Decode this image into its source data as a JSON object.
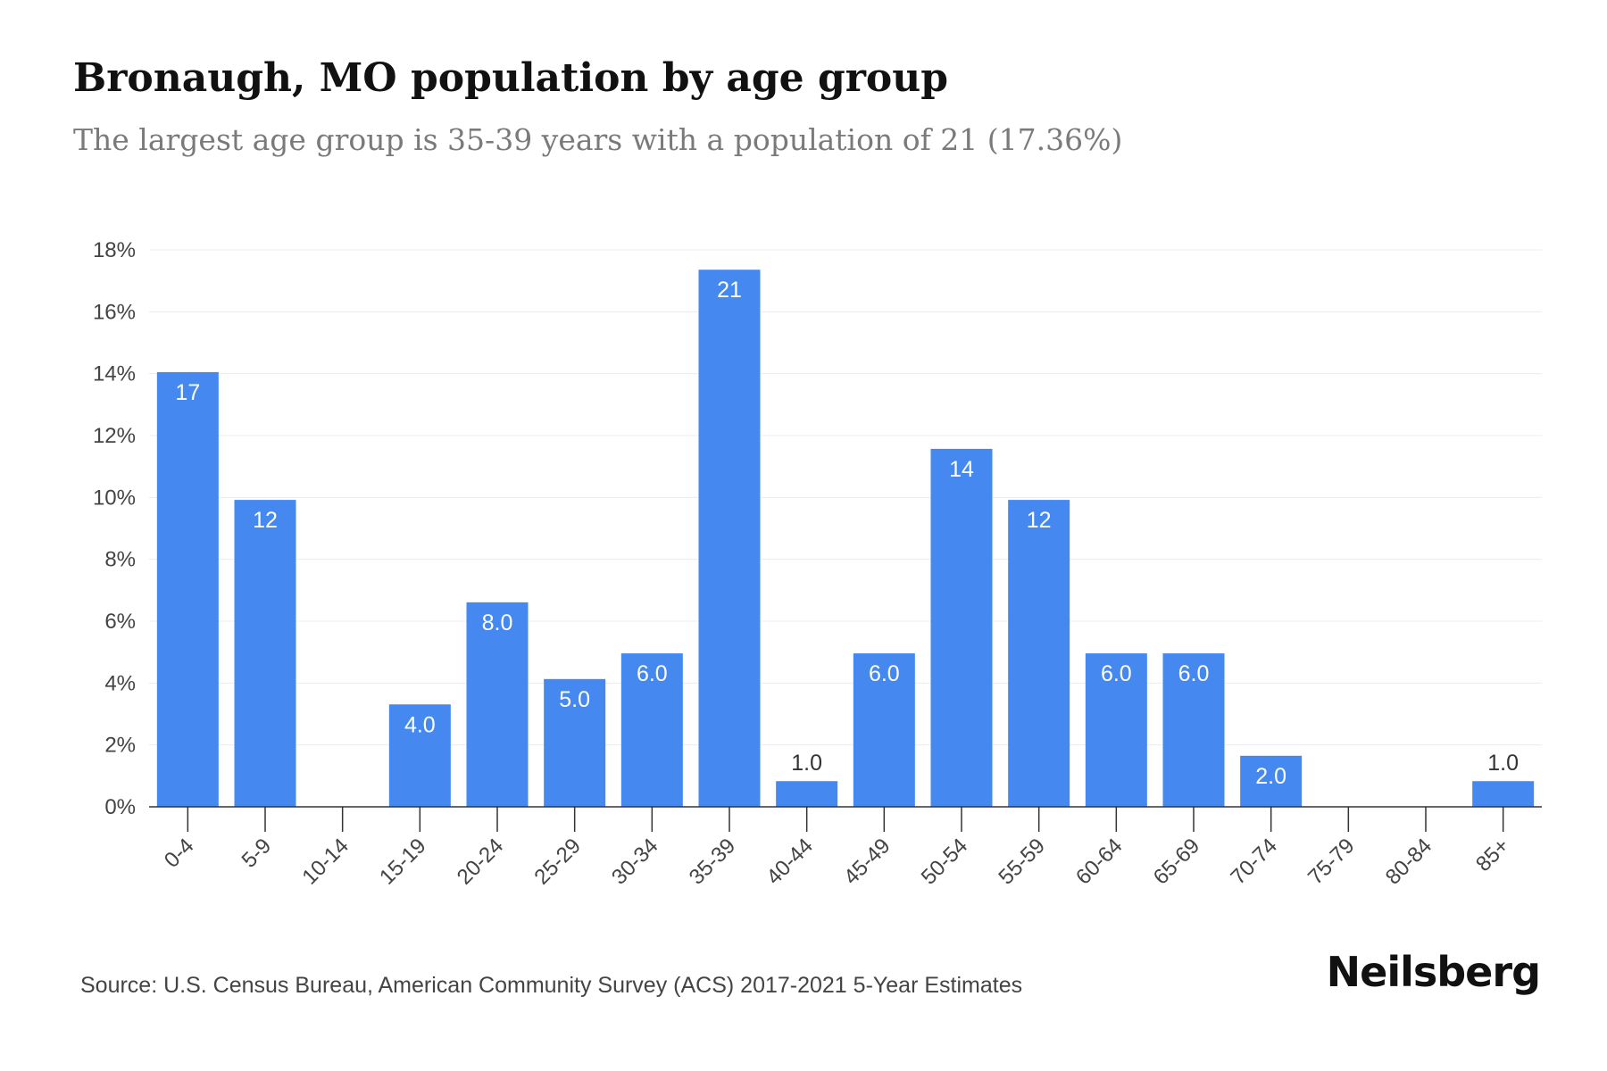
{
  "title": "Bronaugh, MO population by age group",
  "subtitle": "The largest age group is 35-39 years with a population of 21 (17.36%)",
  "source": "Source: U.S. Census Bureau, American Community Survey (ACS) 2017-2021 5-Year Estimates",
  "brand": "Neilsberg",
  "colors": {
    "bar": "#4589f0",
    "grid": "#ececec",
    "axis": "#333333",
    "tick_text": "#444444",
    "label_inside": "#ffffff",
    "label_outside": "#333333"
  },
  "chart_data": {
    "type": "bar",
    "categories": [
      "0-4",
      "5-9",
      "10-14",
      "15-19",
      "20-24",
      "25-29",
      "30-34",
      "35-39",
      "40-44",
      "45-49",
      "50-54",
      "55-59",
      "60-64",
      "65-69",
      "70-74",
      "75-79",
      "80-84",
      "85+"
    ],
    "values": [
      14.05,
      9.92,
      0,
      3.31,
      6.61,
      4.13,
      4.96,
      17.36,
      0.83,
      4.96,
      11.57,
      9.92,
      4.96,
      4.96,
      1.65,
      0,
      0,
      0.83
    ],
    "data_labels": [
      "17",
      "12",
      "",
      "4.0",
      "8.0",
      "5.0",
      "6.0",
      "21",
      "1.0",
      "6.0",
      "14",
      "12",
      "6.0",
      "6.0",
      "2.0",
      "",
      "",
      "1.0"
    ],
    "yticks": [
      "0%",
      "2%",
      "4%",
      "6%",
      "8%",
      "10%",
      "12%",
      "14%",
      "16%",
      "18%"
    ],
    "ylim": [
      0,
      18
    ],
    "xlabel": "",
    "ylabel": "",
    "grid": true,
    "legend": "none"
  }
}
